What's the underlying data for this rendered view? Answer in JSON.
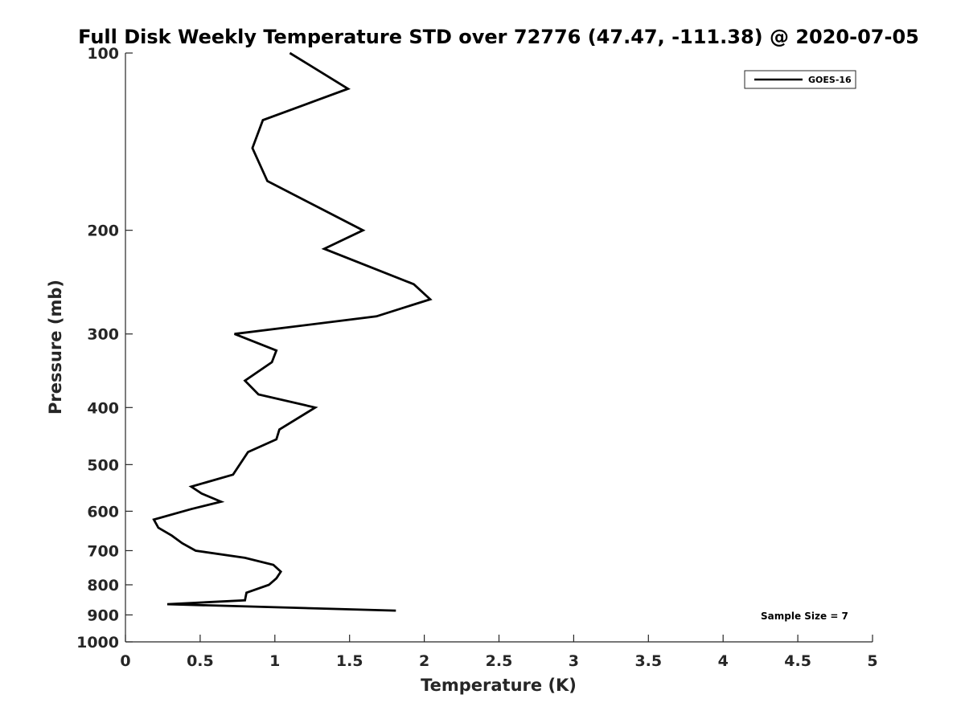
{
  "chart_data": {
    "type": "line",
    "title": "Full Disk Weekly Temperature STD over 72776 (47.47, -111.38) @ 2020-07-05",
    "xlabel": "Temperature (K)",
    "ylabel": "Pressure (mb)",
    "xlim": [
      0,
      5
    ],
    "ylim": [
      100,
      1000
    ],
    "y_scale": "log",
    "y_reversed": true,
    "x_ticks": [
      "0",
      "0.5",
      "1",
      "1.5",
      "2",
      "2.5",
      "3",
      "3.5",
      "4",
      "4.5",
      "5"
    ],
    "y_ticks": [
      "100",
      "200",
      "300",
      "400",
      "500",
      "600",
      "700",
      "800",
      "900",
      "1000"
    ],
    "grid": false,
    "legend_position": "top-right",
    "annotation": "Sample Size = 7",
    "colors": {
      "line": "#000000",
      "axis": "#262626"
    },
    "series": [
      {
        "name": "GOES-16",
        "x": [
          1.1,
          1.49,
          0.92,
          0.85,
          0.95,
          1.59,
          1.33,
          1.93,
          2.04,
          1.68,
          0.73,
          1.01,
          0.98,
          0.8,
          0.89,
          1.27,
          1.03,
          1.01,
          0.82,
          0.72,
          0.44,
          0.51,
          0.64,
          0.44,
          0.19,
          0.22,
          0.31,
          0.38,
          0.47,
          0.8,
          0.99,
          1.04,
          1.01,
          0.96,
          0.81,
          0.8,
          0.28,
          1.81
        ],
        "y": [
          100,
          115,
          130,
          145,
          165,
          200,
          215,
          247,
          262,
          280,
          300,
          320,
          335,
          360,
          380,
          400,
          436,
          453,
          476,
          520,
          545,
          560,
          578,
          595,
          620,
          640,
          660,
          680,
          700,
          720,
          740,
          760,
          780,
          800,
          825,
          850,
          863,
          885
        ]
      }
    ]
  }
}
